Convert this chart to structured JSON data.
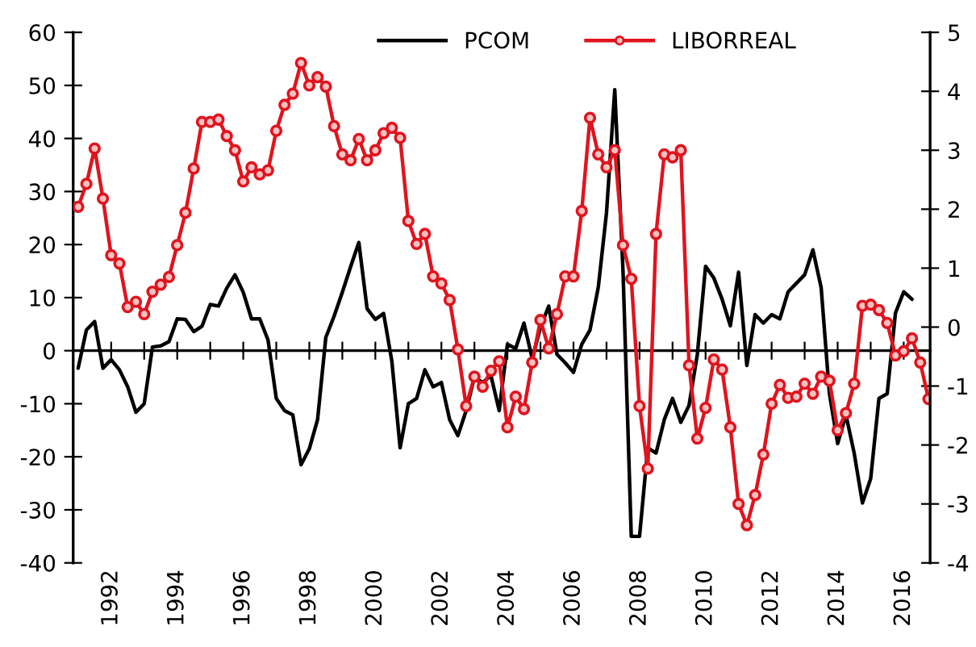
{
  "chart_data": {
    "type": "line",
    "legend": "top",
    "xlim": [
      1990.85,
      2016.8
    ],
    "xticks": [
      {
        "value": 1992,
        "label": "1992"
      },
      {
        "value": 1993,
        "label": null
      },
      {
        "value": 1994,
        "label": "1994"
      },
      {
        "value": 1995,
        "label": null
      },
      {
        "value": 1996,
        "label": "1996"
      },
      {
        "value": 1997,
        "label": null
      },
      {
        "value": 1998,
        "label": "1998"
      },
      {
        "value": 1999,
        "label": null
      },
      {
        "value": 2000,
        "label": "2000"
      },
      {
        "value": 2001,
        "label": null
      },
      {
        "value": 2002,
        "label": "2002"
      },
      {
        "value": 2003,
        "label": null
      },
      {
        "value": 2004,
        "label": "2004"
      },
      {
        "value": 2005,
        "label": null
      },
      {
        "value": 2006,
        "label": "2006"
      },
      {
        "value": 2007,
        "label": null
      },
      {
        "value": 2008,
        "label": "2008"
      },
      {
        "value": 2009,
        "label": null
      },
      {
        "value": 2010,
        "label": "2010"
      },
      {
        "value": 2011,
        "label": null
      },
      {
        "value": 2012,
        "label": "2012"
      },
      {
        "value": 2013,
        "label": null
      },
      {
        "value": 2014,
        "label": "2014"
      },
      {
        "value": 2015,
        "label": null
      },
      {
        "value": 2016,
        "label": "2016"
      }
    ],
    "ylim": [
      -40,
      60
    ],
    "yticks": [
      -40,
      -30,
      -20,
      -10,
      0,
      10,
      20,
      30,
      40,
      50,
      60
    ],
    "y2lim": [
      -4,
      5
    ],
    "y2ticks": [
      -4,
      -3,
      -2,
      -1,
      0,
      1,
      2,
      3,
      4,
      5
    ],
    "series": [
      {
        "name": "PCOM",
        "color": "#000000",
        "marker": "none",
        "line_style": "solid",
        "x": [
          1991,
          1991.25,
          1991.5,
          1991.75,
          1992,
          1992.25,
          1992.5,
          1992.75,
          1993,
          1993.25,
          1993.5,
          1993.75,
          1994,
          1994.25,
          1994.5,
          1994.75,
          1995,
          1995.25,
          1995.5,
          1995.75,
          1996,
          1996.25,
          1996.5,
          1996.75,
          1997,
          1997.25,
          1997.5,
          1997.75,
          1998,
          1998.25,
          1998.5,
          1998.75,
          1999,
          1999.25,
          1999.5,
          1999.75,
          2000,
          2000.25,
          2000.5,
          2000.75,
          2001,
          2001.25,
          2001.5,
          2001.75,
          2002,
          2002.25,
          2002.5,
          2002.75,
          2003,
          2003.25,
          2003.5,
          2003.75,
          2004,
          2004.25,
          2004.5,
          2004.75,
          2005,
          2005.25,
          2005.5,
          2005.75,
          2006,
          2006.25,
          2006.5,
          2006.75,
          2007,
          2007.25,
          2007.5,
          2007.75,
          2008,
          2008.25,
          2008.5,
          2008.75,
          2009,
          2009.25,
          2009.5,
          2009.75,
          2010,
          2010.25,
          2010.5,
          2010.75,
          2011,
          2011.25,
          2011.5,
          2011.75,
          2012,
          2012.25,
          2012.5,
          2012.75,
          2013,
          2013.25,
          2013.5,
          2013.75,
          2014,
          2014.25,
          2014.5,
          2014.75,
          2015,
          2015.25,
          2015.5,
          2015.75,
          2016,
          2016.25
        ],
        "values": [
          -3.3,
          3.9,
          5.5,
          -3.3,
          -1.7,
          -3.6,
          -6.8,
          -11.6,
          -10,
          0.7,
          0.9,
          1.7,
          6,
          5.9,
          3.6,
          4.6,
          8.7,
          8.4,
          11.8,
          14.3,
          11,
          6,
          6,
          2,
          -9,
          -11.3,
          -12.1,
          -21.5,
          -18.5,
          -13,
          2.5,
          6.5,
          11,
          15.8,
          20.4,
          7.9,
          5.9,
          7,
          -2,
          -18.3,
          -10,
          -9,
          -3.6,
          -6.8,
          -6,
          -13,
          -16,
          -11.3,
          -5,
          -6,
          -4.7,
          -11.3,
          1.2,
          0.4,
          5.2,
          -1.5,
          4.4,
          8.4,
          -0.7,
          -2.3,
          -4.1,
          1.2,
          3.9,
          11.9,
          26,
          49.2,
          15,
          -35,
          -35,
          -18.3,
          -19.3,
          -13,
          -9,
          -13.5,
          -10.3,
          -0.7,
          15.9,
          13.7,
          9.7,
          4.7,
          14.8,
          -2.8,
          6.8,
          5.2,
          6.8,
          6,
          11.1,
          12.7,
          14.3,
          19,
          11.9,
          -8.1,
          -17.5,
          -12.1,
          -19.3,
          -28.7,
          -24.1,
          -9,
          -8.1,
          7.1,
          11.1,
          9.7
        ]
      },
      {
        "name": "LIBORREAL",
        "color": "#e0141e",
        "marker": "circle",
        "line_style": "solid",
        "axis": "y2",
        "x": [
          1991,
          1991.25,
          1991.5,
          1991.75,
          1992,
          1992.25,
          1992.5,
          1992.75,
          1993,
          1993.25,
          1993.5,
          1993.75,
          1994,
          1994.25,
          1994.5,
          1994.75,
          1995,
          1995.25,
          1995.5,
          1995.75,
          1996,
          1996.25,
          1996.5,
          1996.75,
          1997,
          1997.25,
          1997.5,
          1997.75,
          1998,
          1998.25,
          1998.5,
          1998.75,
          1999,
          1999.25,
          1999.5,
          1999.75,
          2000,
          2000.25,
          2000.5,
          2000.75,
          2001,
          2001.25,
          2001.5,
          2001.75,
          2002,
          2002.25,
          2002.5,
          2002.75,
          2003,
          2003.25,
          2003.5,
          2003.75,
          2004,
          2004.25,
          2004.5,
          2004.75,
          2005,
          2005.25,
          2005.5,
          2005.75,
          2006,
          2006.25,
          2006.5,
          2006.75,
          2007,
          2007.25,
          2007.5,
          2007.75,
          2008,
          2008.25,
          2008.5,
          2008.75,
          2009,
          2009.25,
          2009.5,
          2009.75,
          2010,
          2010.25,
          2010.5,
          2010.75,
          2011,
          2011.25,
          2011.5,
          2011.75,
          2012,
          2012.25,
          2012.5,
          2012.75,
          2013,
          2013.25,
          2013.5,
          2013.75,
          2014,
          2014.25,
          2014.5,
          2014.75,
          2015,
          2015.25,
          2015.5,
          2015.75,
          2016,
          2016.25,
          2016.5,
          2016.75
        ],
        "values": [
          2.04,
          2.43,
          3.03,
          2.18,
          1.22,
          1.08,
          0.34,
          0.43,
          0.22,
          0.6,
          0.72,
          0.85,
          1.39,
          1.94,
          2.69,
          3.48,
          3.48,
          3.52,
          3.24,
          3.0,
          2.47,
          2.71,
          2.59,
          2.66,
          3.33,
          3.77,
          3.96,
          4.48,
          4.1,
          4.24,
          4.08,
          3.41,
          2.93,
          2.83,
          3.19,
          2.83,
          3.0,
          3.29,
          3.38,
          3.21,
          1.8,
          1.41,
          1.58,
          0.86,
          0.74,
          0.46,
          -0.38,
          -1.34,
          -0.84,
          -1.01,
          -0.74,
          -0.58,
          -1.7,
          -1.18,
          -1.39,
          -0.6,
          0.12,
          -0.36,
          0.22,
          0.86,
          0.86,
          1.97,
          3.55,
          2.93,
          2.71,
          3.0,
          1.39,
          0.82,
          -1.34,
          -2.4,
          1.58,
          2.93,
          2.88,
          3.0,
          -0.65,
          -1.89,
          -1.37,
          -0.55,
          -0.72,
          -1.7,
          -3.0,
          -3.36,
          -2.85,
          -2.16,
          -1.3,
          -0.98,
          -1.2,
          -1.18,
          -0.96,
          -1.13,
          -0.84,
          -0.91,
          -1.75,
          -1.46,
          -0.96,
          0.36,
          0.38,
          0.29,
          0.07,
          -0.48,
          -0.41,
          -0.19,
          -0.6,
          -1.22
        ]
      }
    ]
  }
}
